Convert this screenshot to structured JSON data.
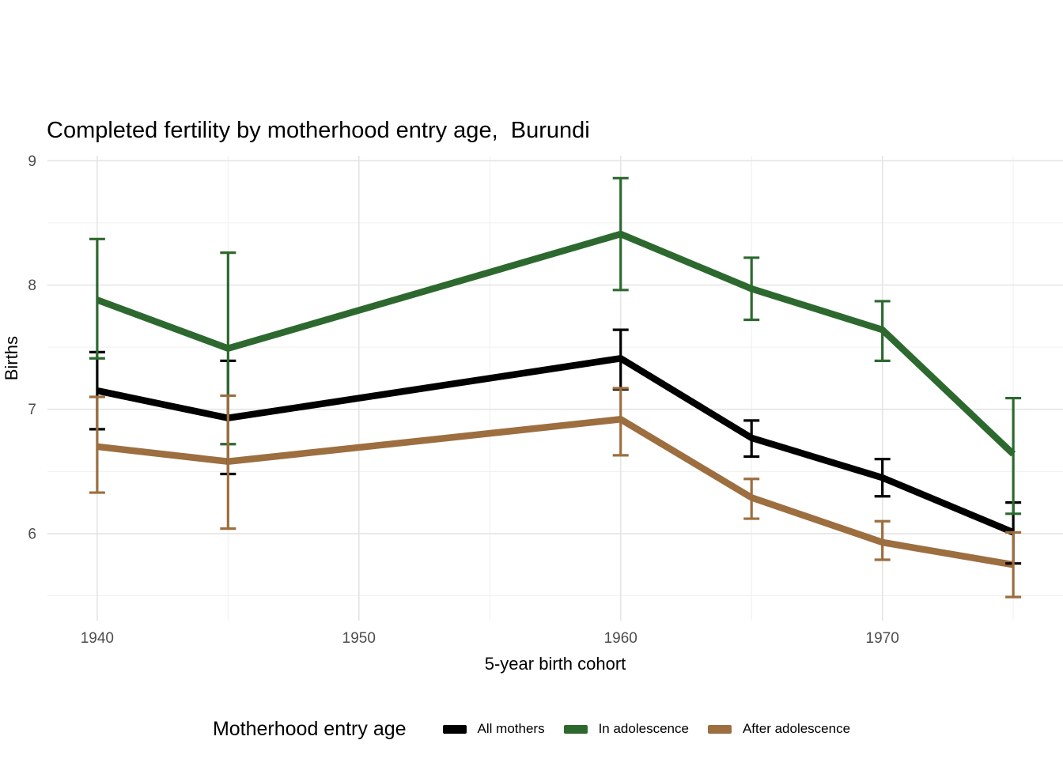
{
  "chart_data": {
    "type": "line",
    "title": "Completed fertility by motherhood entry age,  Burundi",
    "xlabel": "5-year birth cohort",
    "ylabel": "Births",
    "grid": true,
    "error_bars": true,
    "xlim": [
      1938.1,
      1976.9
    ],
    "ylim": [
      5.3,
      9.04
    ],
    "x_ticks": [
      1940,
      1950,
      1960,
      1970
    ],
    "x_minor_ticks": [
      1945,
      1955,
      1965,
      1975
    ],
    "y_ticks": [
      9,
      8,
      7,
      6
    ],
    "y_minor_ticks": [
      8.5,
      7.5,
      6.5,
      5.5
    ],
    "legend": {
      "title": "Motherhood entry age",
      "position": "bottom"
    },
    "colors": {
      "background": "#ffffff",
      "grid_major": "#e4e4e4",
      "grid_minor": "#f0f0f0",
      "tick_label": "#4d4d4d",
      "text": "#000000"
    },
    "series": [
      {
        "name": "All mothers",
        "color": "#000000",
        "points": [
          {
            "x": 1940,
            "y": 7.15,
            "lo": 6.84,
            "hi": 7.46
          },
          {
            "x": 1945,
            "y": 6.93,
            "lo": 6.48,
            "hi": 7.39
          },
          {
            "x": 1960,
            "y": 7.41,
            "lo": 7.16,
            "hi": 7.64
          },
          {
            "x": 1965,
            "y": 6.77,
            "lo": 6.62,
            "hi": 6.91
          },
          {
            "x": 1970,
            "y": 6.45,
            "lo": 6.3,
            "hi": 6.6
          },
          {
            "x": 1975,
            "y": 6.01,
            "lo": 5.76,
            "hi": 6.25
          }
        ]
      },
      {
        "name": "In adolescence",
        "color": "#2d692f",
        "points": [
          {
            "x": 1940,
            "y": 7.88,
            "lo": 7.41,
            "hi": 8.37
          },
          {
            "x": 1945,
            "y": 7.49,
            "lo": 6.72,
            "hi": 8.26
          },
          {
            "x": 1960,
            "y": 8.41,
            "lo": 7.96,
            "hi": 8.86
          },
          {
            "x": 1965,
            "y": 7.97,
            "lo": 7.72,
            "hi": 8.22
          },
          {
            "x": 1970,
            "y": 7.64,
            "lo": 7.39,
            "hi": 7.87
          },
          {
            "x": 1975,
            "y": 6.64,
            "lo": 6.16,
            "hi": 7.09
          }
        ]
      },
      {
        "name": "After adolescence",
        "color": "#9d6e3f",
        "points": [
          {
            "x": 1940,
            "y": 6.7,
            "lo": 6.33,
            "hi": 7.1
          },
          {
            "x": 1945,
            "y": 6.58,
            "lo": 6.04,
            "hi": 7.11
          },
          {
            "x": 1960,
            "y": 6.92,
            "lo": 6.63,
            "hi": 7.17
          },
          {
            "x": 1965,
            "y": 6.29,
            "lo": 6.12,
            "hi": 6.44
          },
          {
            "x": 1970,
            "y": 5.93,
            "lo": 5.79,
            "hi": 6.1
          },
          {
            "x": 1975,
            "y": 5.75,
            "lo": 5.49,
            "hi": 6.01
          }
        ]
      }
    ]
  }
}
